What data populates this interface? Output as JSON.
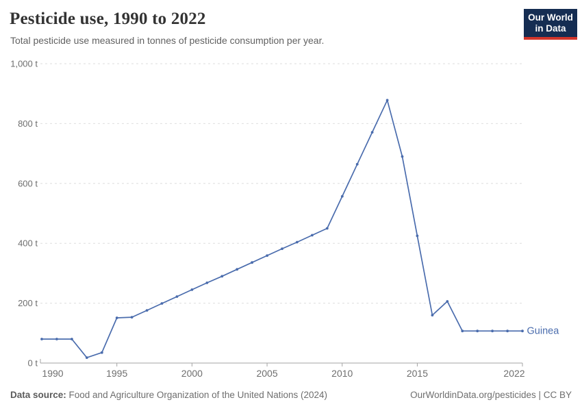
{
  "header": {
    "title": "Pesticide use, 1990 to 2022",
    "subtitle": "Total pesticide use measured in tonnes of pesticide consumption per year.",
    "logo": {
      "line1": "Our World",
      "line2": "in Data"
    }
  },
  "footer": {
    "source_label": "Data source:",
    "source_text": " Food and Agriculture Organization of the United Nations (2024)",
    "link_text": "OurWorldinData.org/pesticides | CC BY"
  },
  "colors": {
    "line": "#4a6cad",
    "grid": "#dedede",
    "axis": "#a3a3a3",
    "tick_text": "#6e6e6e",
    "title": "#333333",
    "subtitle": "#616161",
    "logo_bg": "#152d52",
    "logo_red": "#d2352b"
  },
  "chart_data": {
    "type": "line",
    "title": "Pesticide use, 1990 to 2022",
    "subtitle": "Total pesticide use measured in tonnes of pesticide consumption per year.",
    "xlabel": "",
    "ylabel": "",
    "unit": "t",
    "xlim": [
      1990,
      2022
    ],
    "ylim": [
      0,
      1000
    ],
    "grid": "horizontal-dashed",
    "legend_position": "end-of-line-label",
    "x_ticks": [
      1990,
      1995,
      2000,
      2005,
      2010,
      2015,
      2022
    ],
    "y_ticks": [
      0,
      200,
      400,
      600,
      800,
      1000
    ],
    "y_tick_labels": [
      "0 t",
      "200 t",
      "400 t",
      "600 t",
      "800 t",
      "1,000 t"
    ],
    "series": [
      {
        "name": "Guinea",
        "color": "#4a6cad",
        "x": [
          1990,
          1991,
          1992,
          1993,
          1994,
          1995,
          1996,
          1997,
          1998,
          1999,
          2000,
          2001,
          2002,
          2003,
          2004,
          2005,
          2006,
          2007,
          2008,
          2009,
          2010,
          2011,
          2012,
          2013,
          2014,
          2015,
          2016,
          2017,
          2018,
          2019,
          2020,
          2021,
          2022
        ],
        "values": [
          80,
          80,
          80,
          18,
          35,
          151,
          153,
          176,
          199,
          222,
          245,
          268,
          290,
          313,
          336,
          359,
          382,
          404,
          427,
          450,
          557,
          664,
          771,
          878,
          690,
          425,
          160,
          206,
          107,
          107,
          107,
          107,
          107
        ]
      }
    ]
  }
}
